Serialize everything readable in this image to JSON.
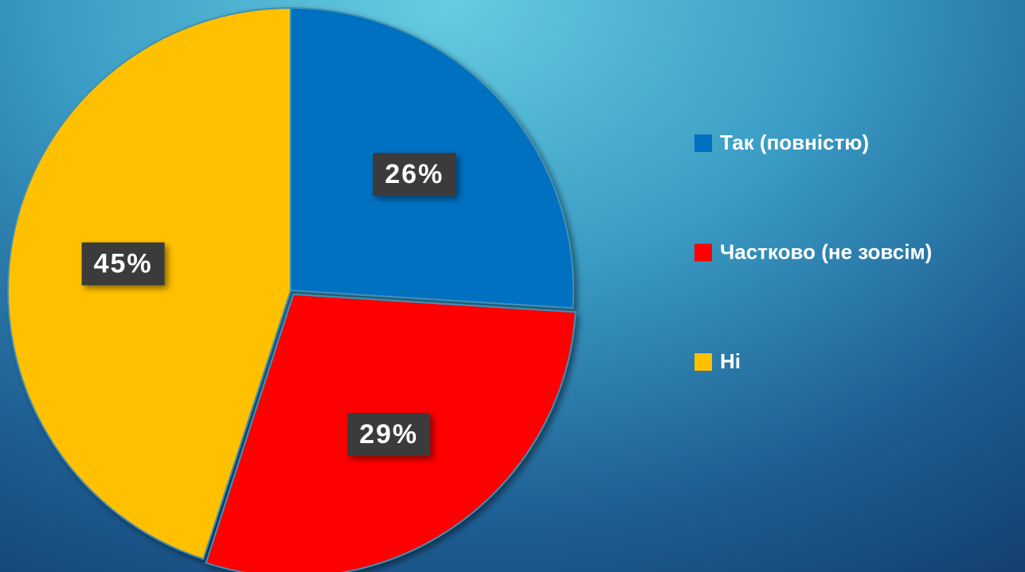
{
  "chart_data": {
    "type": "pie",
    "categories": [
      "Так (повністю)",
      "Частково (не зовсім)",
      "Ні"
    ],
    "values": [
      26,
      29,
      45
    ],
    "value_labels": [
      "26%",
      "29%",
      "45%"
    ],
    "colors": [
      "#0070c0",
      "#ff0000",
      "#ffc000"
    ],
    "legend": "right"
  }
}
